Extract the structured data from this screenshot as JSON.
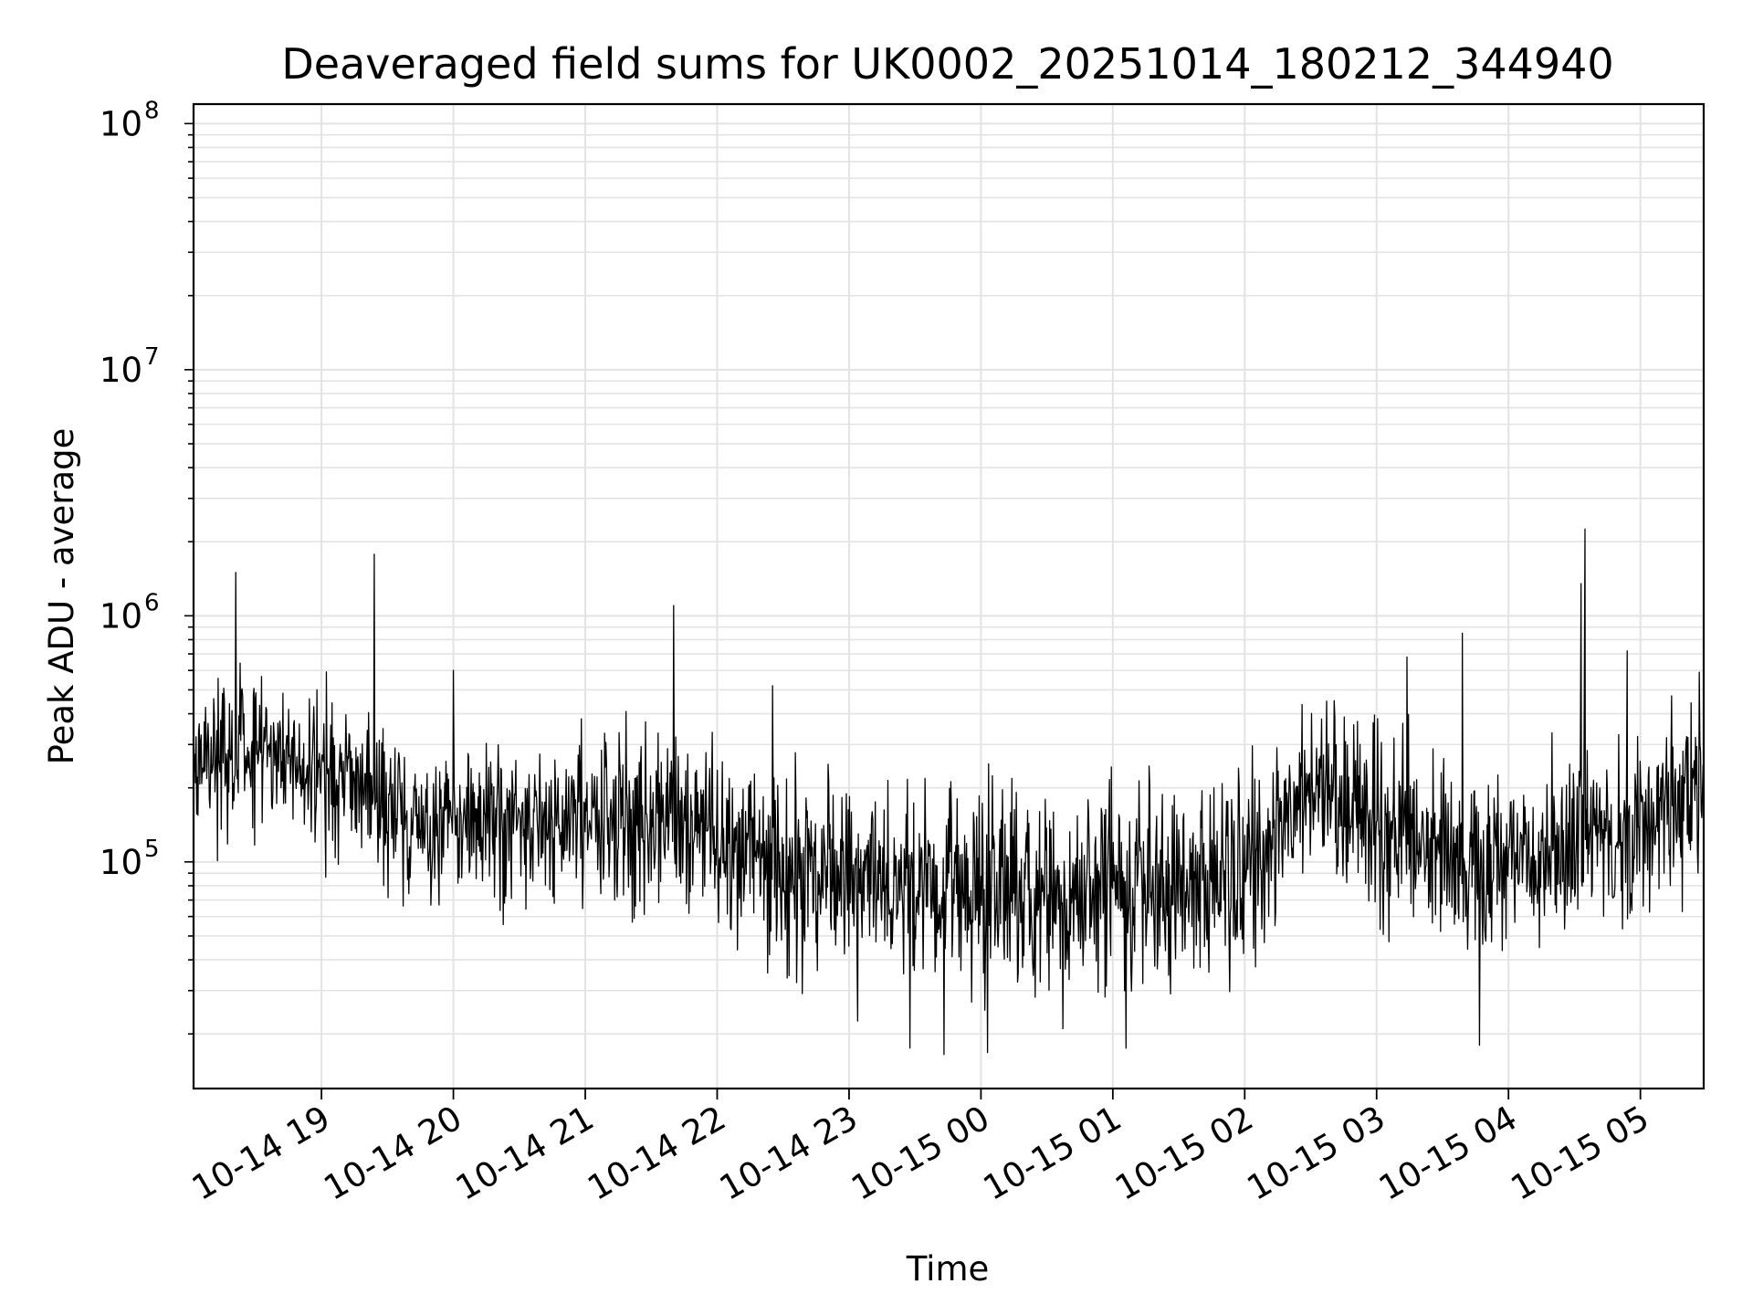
{
  "chart_data": {
    "type": "line",
    "title": "Deaveraged field sums for UK0002_20251014_180212_344940",
    "xlabel": "Time",
    "ylabel": "Peak ADU - average",
    "yscale": "log",
    "ylim": [
      12000,
      120000000
    ],
    "grid": true,
    "x_range_hours": [
      -0.97,
      10.48
    ],
    "x_tick_labels": [
      "10-14 19",
      "10-14 20",
      "10-14 21",
      "10-14 22",
      "10-14 23",
      "10-15 00",
      "10-15 01",
      "10-15 02",
      "10-15 03",
      "10-15 04",
      "10-15 05"
    ],
    "x_tick_hours": [
      0,
      1,
      2,
      3,
      4,
      5,
      6,
      7,
      8,
      9,
      10
    ],
    "y_tick_labels": [
      {
        "base": "10",
        "exp": "5",
        "value": 100000
      },
      {
        "base": "10",
        "exp": "6",
        "value": 1000000
      },
      {
        "base": "10",
        "exp": "7",
        "value": 10000000
      },
      {
        "base": "10",
        "exp": "8",
        "value": 100000000
      }
    ],
    "series": [
      {
        "name": "field sums",
        "color": "#000000",
        "envelope": {
          "hours": [
            -0.97,
            -0.7,
            -0.5,
            -0.3,
            0.0,
            0.4,
            0.8,
            1.2,
            1.6,
            2.0,
            2.4,
            2.8,
            3.2,
            3.6,
            4.0,
            4.4,
            4.8,
            5.2,
            5.6,
            6.0,
            6.4,
            6.8,
            7.2,
            7.6,
            8.0,
            8.4,
            8.8,
            9.2,
            9.6,
            10.0,
            10.48
          ],
          "median": [
            250000,
            300000,
            280000,
            250000,
            220000,
            170000,
            140000,
            140000,
            145000,
            150000,
            150000,
            130000,
            110000,
            90000,
            80000,
            75000,
            75000,
            75000,
            75000,
            78000,
            82000,
            90000,
            120000,
            200000,
            150000,
            115000,
            100000,
            105000,
            120000,
            130000,
            200000
          ],
          "spread": [
            0.55,
            0.55,
            0.55,
            0.5,
            0.5,
            0.5,
            0.55,
            0.55,
            0.55,
            0.55,
            0.55,
            0.6,
            0.65,
            0.7,
            0.7,
            0.7,
            0.7,
            0.7,
            0.7,
            0.7,
            0.7,
            0.7,
            0.65,
            0.55,
            0.6,
            0.65,
            0.65,
            0.65,
            0.65,
            0.6,
            0.55
          ]
        },
        "n_points": 2400,
        "spikes": [
          {
            "hour": -0.65,
            "value": 1500000
          },
          {
            "hour": 0.4,
            "value": 1780000
          },
          {
            "hour": 1.0,
            "value": 600000
          },
          {
            "hour": 2.67,
            "value": 1100000
          },
          {
            "hour": 3.42,
            "value": 520000
          },
          {
            "hour": 8.23,
            "value": 680000
          },
          {
            "hour": 8.65,
            "value": 850000
          },
          {
            "hour": 9.55,
            "value": 1350000
          },
          {
            "hour": 9.58,
            "value": 2250000
          },
          {
            "hour": 9.9,
            "value": 720000
          }
        ],
        "dips": [
          {
            "hour": 4.72,
            "value": 16500
          },
          {
            "hour": 5.05,
            "value": 16800
          },
          {
            "hour": 6.1,
            "value": 17500
          },
          {
            "hour": 8.78,
            "value": 18000
          }
        ]
      }
    ]
  }
}
